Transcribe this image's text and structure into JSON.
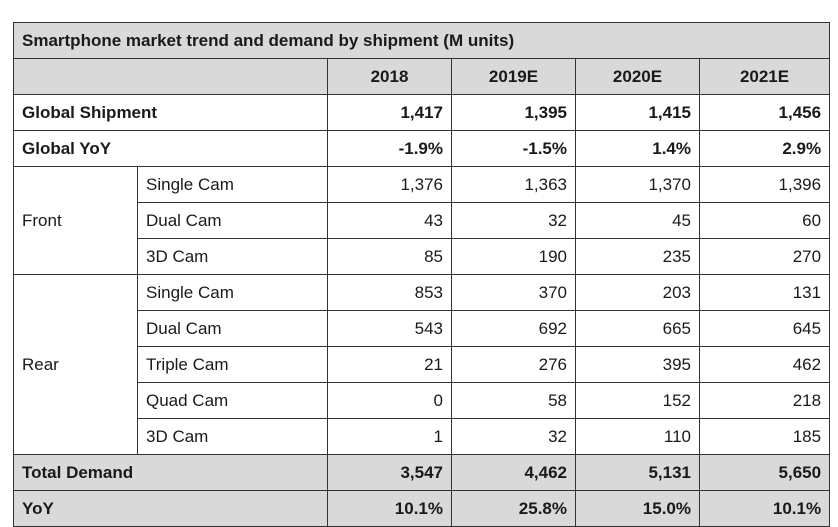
{
  "chart_data": {
    "type": "table",
    "title": "Smartphone market trend and demand by shipment (M units)",
    "columns": [
      "2018",
      "2019E",
      "2020E",
      "2021E"
    ],
    "rows_top": [
      {
        "label": "Global Shipment",
        "values": [
          "1,417",
          "1,395",
          "1,415",
          "1,456"
        ]
      },
      {
        "label": "Global YoY",
        "values": [
          "-1.9%",
          "-1.5%",
          "1.4%",
          "2.9%"
        ]
      }
    ],
    "groups": [
      {
        "name": "Front",
        "rows": [
          {
            "label": "Single Cam",
            "values": [
              "1,376",
              "1,363",
              "1,370",
              "1,396"
            ]
          },
          {
            "label": "Dual Cam",
            "values": [
              "43",
              "32",
              "45",
              "60"
            ]
          },
          {
            "label": "3D Cam",
            "values": [
              "85",
              "190",
              "235",
              "270"
            ]
          }
        ]
      },
      {
        "name": "Rear",
        "rows": [
          {
            "label": "Single Cam",
            "values": [
              "853",
              "370",
              "203",
              "131"
            ]
          },
          {
            "label": "Dual Cam",
            "values": [
              "543",
              "692",
              "665",
              "645"
            ]
          },
          {
            "label": "Triple Cam",
            "values": [
              "21",
              "276",
              "395",
              "462"
            ]
          },
          {
            "label": "Quad Cam",
            "values": [
              "0",
              "58",
              "152",
              "218"
            ]
          },
          {
            "label": "3D Cam",
            "values": [
              "1",
              "32",
              "110",
              "185"
            ]
          }
        ]
      }
    ],
    "rows_bottom": [
      {
        "label": "Total Demand",
        "values": [
          "3,547",
          "4,462",
          "5,131",
          "5,650"
        ]
      },
      {
        "label": "YoY",
        "values": [
          "10.1%",
          "25.8%",
          "15.0%",
          "10.1%"
        ]
      }
    ]
  }
}
